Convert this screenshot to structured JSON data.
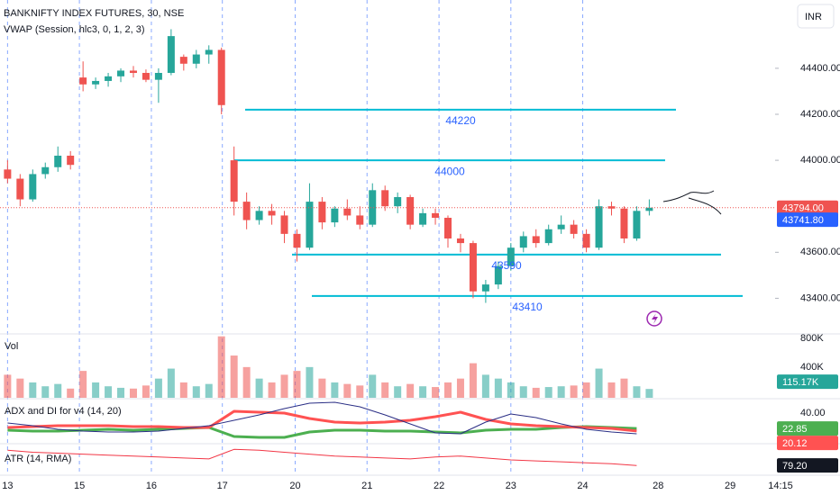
{
  "header": {
    "symbol": "BANKNIFTY INDEX FUTURES, 30, NSE",
    "vwap": "VWAP (Session, hlc3, 0, 1, 2, 3)",
    "currency": "INR"
  },
  "chart_data": [
    {
      "type": "candlestick",
      "up_color": "#26a69a",
      "down_color": "#ef5350",
      "ohlc": [
        [
          43960,
          44000,
          43900,
          43920
        ],
        [
          43920,
          43940,
          43800,
          43830
        ],
        [
          43830,
          43960,
          43820,
          43940
        ],
        [
          43940,
          43990,
          43920,
          43970
        ],
        [
          43970,
          44060,
          43950,
          44020
        ],
        [
          44020,
          44040,
          43960,
          43980
        ],
        [
          44360,
          44430,
          44300,
          44330
        ],
        [
          44330,
          44360,
          44310,
          44345
        ],
        [
          44345,
          44380,
          44320,
          44365
        ],
        [
          44365,
          44400,
          44340,
          44390
        ],
        [
          44390,
          44410,
          44360,
          44380
        ],
        [
          44380,
          44395,
          44340,
          44350
        ],
        [
          44350,
          44400,
          44250,
          44380
        ],
        [
          44380,
          44570,
          44370,
          44540
        ],
        [
          44450,
          44460,
          44390,
          44420
        ],
        [
          44420,
          44480,
          44400,
          44460
        ],
        [
          44460,
          44500,
          44420,
          44480
        ],
        [
          44480,
          44490,
          44200,
          44240
        ],
        [
          44000,
          44060,
          43760,
          43820
        ],
        [
          43820,
          43860,
          43700,
          43740
        ],
        [
          43740,
          43800,
          43720,
          43780
        ],
        [
          43780,
          43810,
          43720,
          43760
        ],
        [
          43760,
          43780,
          43640,
          43680
        ],
        [
          43680,
          43700,
          43560,
          43620
        ],
        [
          43620,
          43900,
          43610,
          43820
        ],
        [
          43820,
          43840,
          43700,
          43730
        ],
        [
          43730,
          43800,
          43710,
          43790
        ],
        [
          43790,
          43830,
          43740,
          43760
        ],
        [
          43760,
          43800,
          43700,
          43720
        ],
        [
          43720,
          43900,
          43710,
          43870
        ],
        [
          43870,
          43890,
          43780,
          43800
        ],
        [
          43800,
          43860,
          43770,
          43840
        ],
        [
          43840,
          43850,
          43700,
          43720
        ],
        [
          43720,
          43790,
          43710,
          43770
        ],
        [
          43770,
          43790,
          43720,
          43750
        ],
        [
          43750,
          43760,
          43620,
          43660
        ],
        [
          43660,
          43680,
          43600,
          43640
        ],
        [
          43640,
          43650,
          43400,
          43430
        ],
        [
          43430,
          43480,
          43380,
          43460
        ],
        [
          43460,
          43560,
          43440,
          43540
        ],
        [
          43540,
          43640,
          43520,
          43620
        ],
        [
          43620,
          43690,
          43600,
          43670
        ],
        [
          43670,
          43700,
          43620,
          43640
        ],
        [
          43640,
          43720,
          43630,
          43700
        ],
        [
          43700,
          43760,
          43680,
          43720
        ],
        [
          43720,
          43740,
          43660,
          43680
        ],
        [
          43680,
          43700,
          43600,
          43620
        ],
        [
          43620,
          43830,
          43610,
          43800
        ],
        [
          43800,
          43820,
          43760,
          43790
        ],
        [
          43790,
          43800,
          43640,
          43660
        ],
        [
          43660,
          43800,
          43650,
          43780
        ],
        [
          43780,
          43830,
          43760,
          43794
        ]
      ],
      "xlim": [
        -0.6,
        61
      ],
      "xticks": [
        {
          "value": 0,
          "label": "13"
        },
        {
          "value": 5.71,
          "label": "15"
        },
        {
          "value": 11.43,
          "label": "16"
        },
        {
          "value": 17.07,
          "label": "17"
        },
        {
          "value": 22.86,
          "label": "20"
        },
        {
          "value": 28.57,
          "label": "21"
        },
        {
          "value": 34.29,
          "label": "22"
        },
        {
          "value": 40,
          "label": "23"
        },
        {
          "value": 45.71,
          "label": "24"
        },
        {
          "value": 51.71,
          "label": "28"
        },
        {
          "value": 57.43,
          "label": "29"
        },
        {
          "value": 61.43,
          "label": "14:15"
        }
      ],
      "xgrid": true,
      "ylim": [
        43249,
        44697
      ],
      "yticks": [
        {
          "value": 44400,
          "label": "44400.00"
        },
        {
          "value": 44200,
          "label": "44200.00"
        },
        {
          "value": 44000,
          "label": "44000.00"
        },
        {
          "value": 43600,
          "label": "43600.00"
        },
        {
          "value": 43400,
          "label": "43400.00"
        }
      ],
      "levels": [
        44220,
        44000,
        43590,
        43410
      ],
      "level_color": "#00bcd4",
      "last_price": {
        "value": 43794,
        "label": "43794.00"
      },
      "vwap_price": {
        "value": 43741.8,
        "label": "43741.80"
      }
    },
    {
      "type": "bar",
      "title": "Vol",
      "up_color": "rgba(38,166,154,0.55)",
      "down_color": "rgba(239,83,80,0.55)",
      "values": [
        300000,
        250000,
        200000,
        150000,
        180000,
        120000,
        350000,
        200000,
        150000,
        130000,
        120000,
        160000,
        250000,
        380000,
        200000,
        150000,
        180000,
        800000,
        550000,
        400000,
        250000,
        200000,
        300000,
        350000,
        400000,
        250000,
        200000,
        180000,
        160000,
        300000,
        200000,
        150000,
        180000,
        150000,
        140000,
        200000,
        250000,
        450000,
        300000,
        250000,
        200000,
        150000,
        130000,
        140000,
        150000,
        160000,
        200000,
        380000,
        200000,
        250000,
        150000,
        115170
      ],
      "last_label": "115.17K",
      "ylim": [
        0,
        820000
      ],
      "yticks": [
        {
          "value": 800000,
          "label": "800K"
        },
        {
          "value": 400000,
          "label": "400K"
        }
      ]
    },
    {
      "type": "line",
      "title": "ADX and DI for v4 (14, 20)",
      "x": [
        0,
        2,
        4,
        6,
        8,
        10,
        12,
        14,
        16,
        18,
        20,
        22,
        24,
        26,
        28,
        30,
        32,
        34,
        36,
        38,
        40,
        42,
        44,
        46,
        48,
        50
      ],
      "series": [
        {
          "color": "#4caf50",
          "width": 3,
          "values": [
            21,
            20,
            20,
            21,
            22,
            21,
            22,
            23,
            24,
            14,
            13,
            13,
            19,
            21,
            21,
            20,
            20,
            19,
            18,
            21,
            22,
            22,
            24,
            25,
            24,
            22.85
          ]
        },
        {
          "color": "#ff5252",
          "width": 3,
          "values": [
            24,
            25,
            26,
            26,
            26,
            25,
            25,
            24,
            24,
            42,
            41,
            40,
            34,
            30,
            29,
            30,
            32,
            36,
            41,
            33,
            28,
            26,
            25,
            24,
            23,
            20.12
          ]
        },
        {
          "color": "#2a2e85",
          "width": 1,
          "values": [
            29,
            26,
            22,
            20,
            19,
            19,
            20,
            23,
            26,
            32,
            38,
            45,
            51,
            52,
            47,
            38,
            28,
            18,
            17,
            30,
            39,
            35,
            28,
            22,
            19,
            17
          ]
        }
      ],
      "ylim": [
        7,
        54
      ],
      "yticks": [
        {
          "value": 40,
          "label": "40.00"
        }
      ]
    },
    {
      "type": "line",
      "title": "ATR (14, RMA)",
      "x": [
        0,
        2,
        4,
        6,
        8,
        10,
        12,
        14,
        16,
        18,
        20,
        22,
        24,
        26,
        28,
        30,
        32,
        34,
        36,
        38,
        40,
        42,
        44,
        46,
        48,
        50
      ],
      "series": [
        {
          "color": "#f23645",
          "width": 1,
          "values": [
            95,
            93,
            92,
            91,
            90,
            89,
            88,
            87,
            86,
            96,
            95,
            93,
            91,
            89,
            88,
            87,
            86,
            88,
            89,
            87,
            85,
            84,
            83,
            82,
            81,
            79.2
          ]
        }
      ],
      "last_label": "79.20",
      "ylim": [
        70,
        100
      ]
    }
  ]
}
